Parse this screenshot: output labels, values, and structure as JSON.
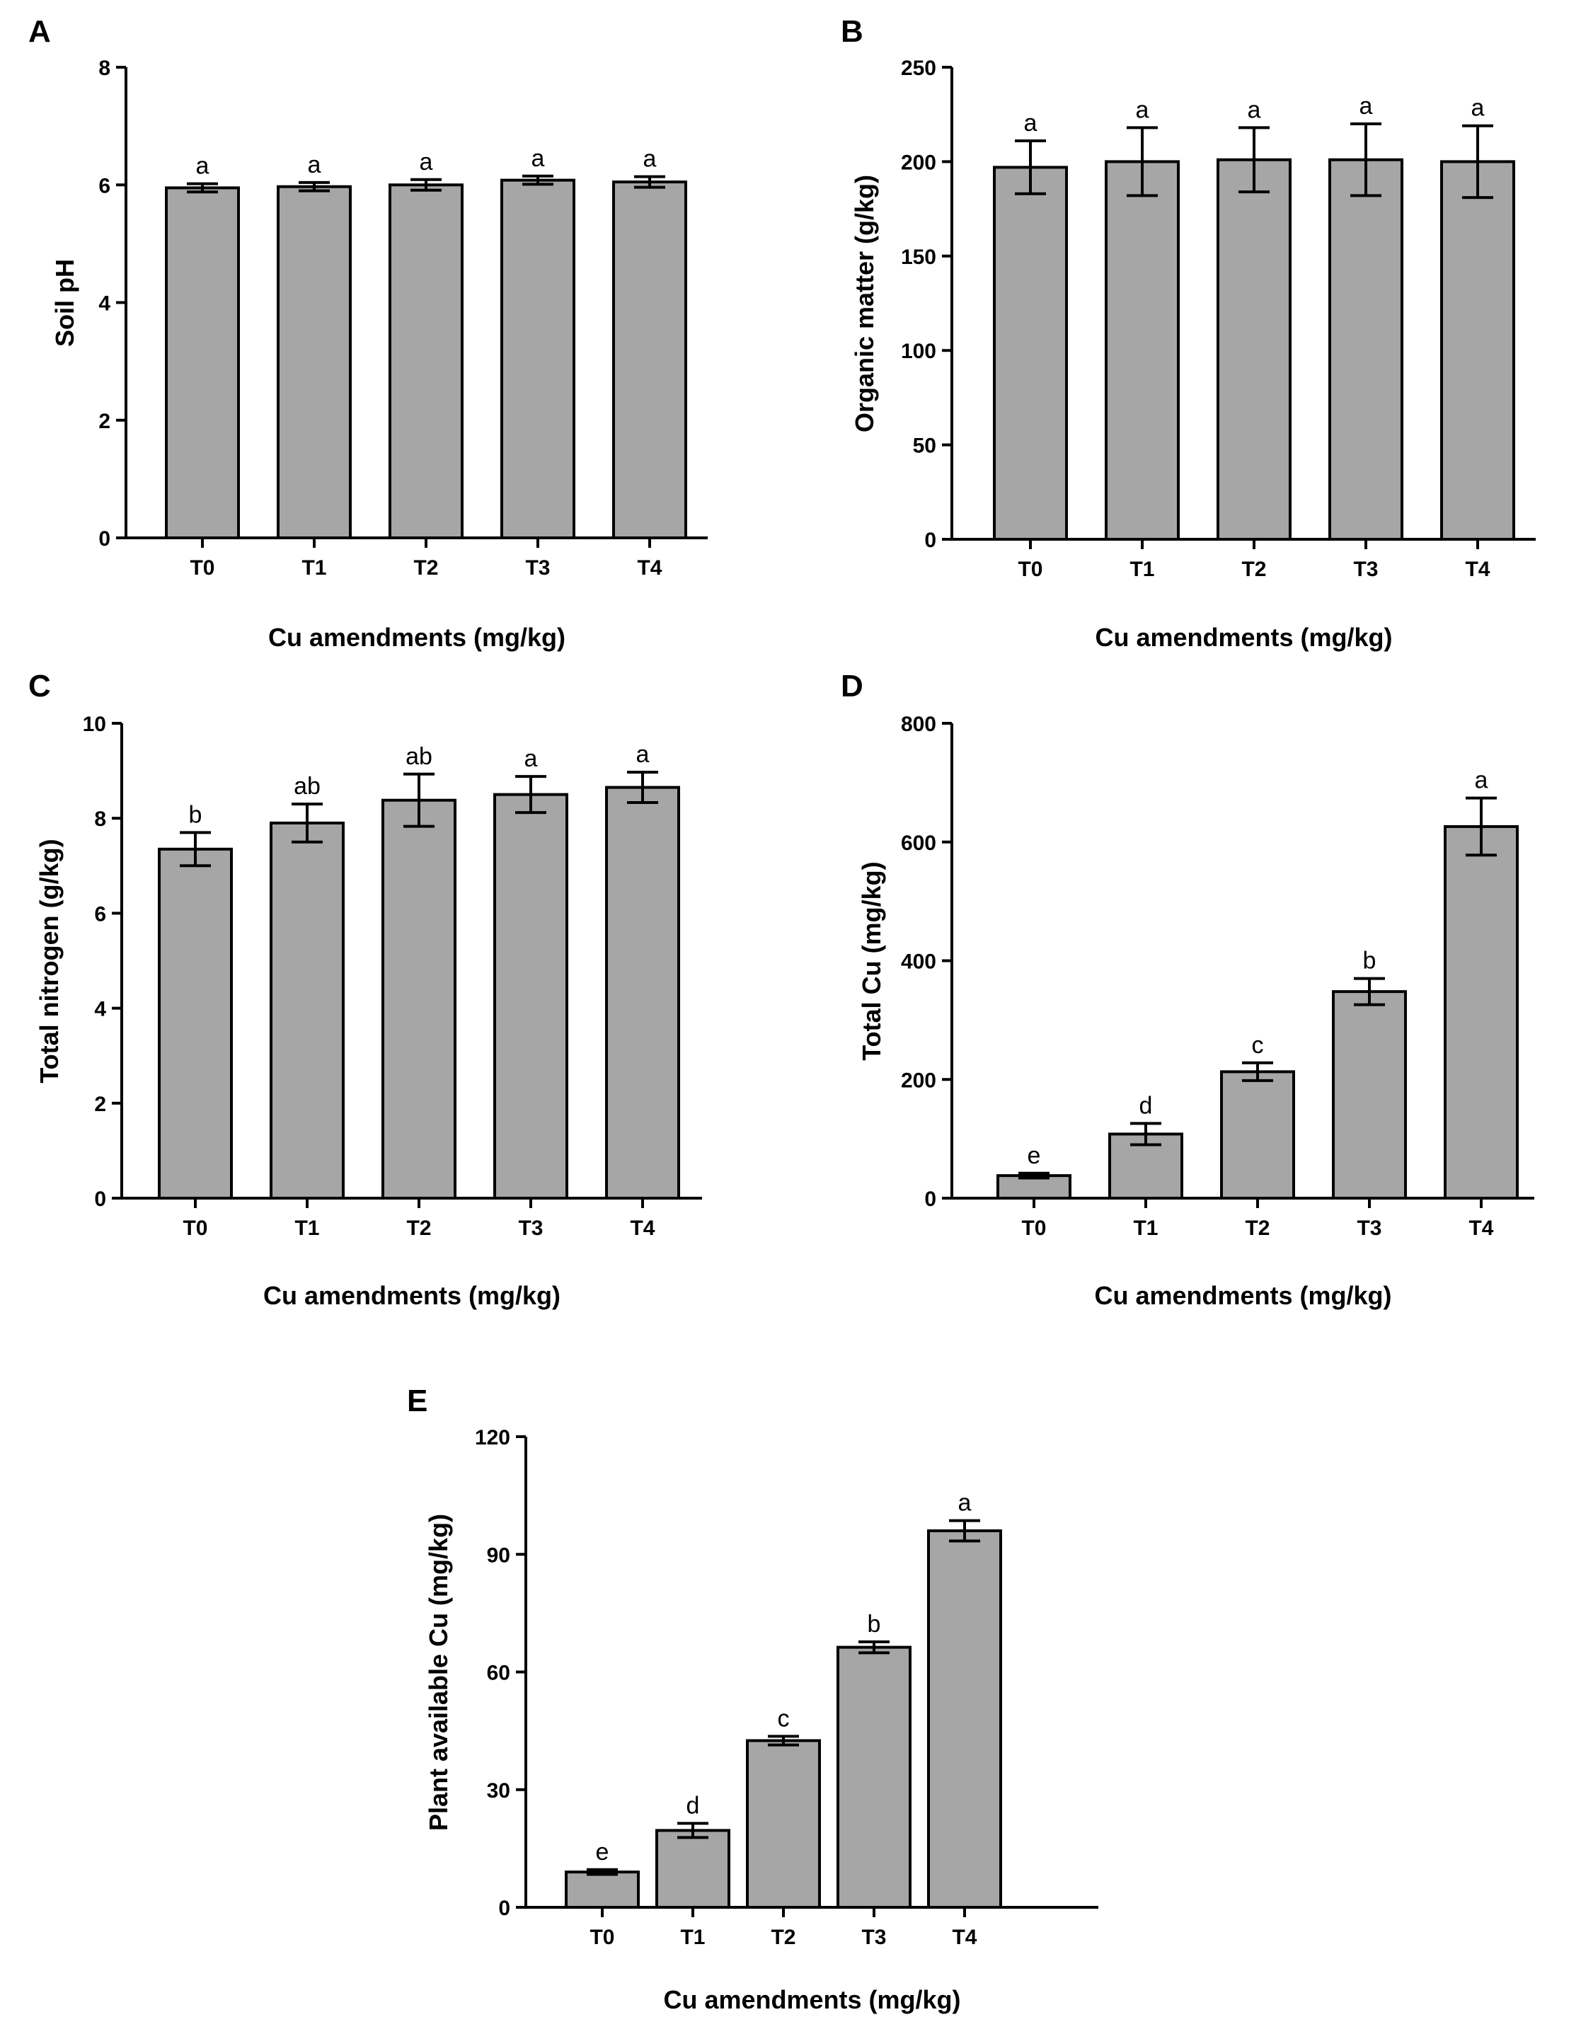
{
  "colors": {
    "bar": "#a6a6a6",
    "stroke": "#000000"
  },
  "chart_data": [
    {
      "type": "bar",
      "panel": "A",
      "categories": [
        "T0",
        "T1",
        "T2",
        "T3",
        "T4"
      ],
      "values": [
        5.95,
        5.97,
        6.0,
        6.08,
        6.05
      ],
      "errors": [
        0.07,
        0.07,
        0.09,
        0.07,
        0.09
      ],
      "significance": [
        "a",
        "a",
        "a",
        "a",
        "a"
      ],
      "ylabel": "Soil pH",
      "xlabel": "Cu amendments (mg/kg)",
      "ylim": [
        0,
        8
      ],
      "yticks": [
        0,
        2,
        4,
        6,
        8
      ],
      "ytick_labels": [
        "0",
        "2",
        "4",
        "6",
        "8"
      ]
    },
    {
      "type": "bar",
      "panel": "B",
      "categories": [
        "T0",
        "T1",
        "T2",
        "T3",
        "T4"
      ],
      "values": [
        197,
        200,
        201,
        201,
        200
      ],
      "errors": [
        14,
        18,
        17,
        19,
        19
      ],
      "significance": [
        "a",
        "a",
        "a",
        "a",
        "a"
      ],
      "ylabel": "Organic matter (g/kg)",
      "xlabel": "Cu amendments (mg/kg)",
      "ylim": [
        0,
        250
      ],
      "yticks": [
        0,
        50,
        100,
        150,
        200,
        250
      ],
      "ytick_labels": [
        "0",
        "50",
        "100",
        "150",
        "200",
        "250"
      ]
    },
    {
      "type": "bar",
      "panel": "C",
      "categories": [
        "T0",
        "T1",
        "T2",
        "T3",
        "T4"
      ],
      "values": [
        7.35,
        7.9,
        8.38,
        8.5,
        8.65
      ],
      "errors": [
        0.35,
        0.4,
        0.55,
        0.38,
        0.32
      ],
      "significance": [
        "b",
        "ab",
        "ab",
        "a",
        "a"
      ],
      "ylabel": "Total nitrogen (g/kg)",
      "xlabel": "Cu amendments (mg/kg)",
      "ylim": [
        0,
        10
      ],
      "yticks": [
        0,
        2,
        4,
        6,
        8,
        10
      ],
      "ytick_labels": [
        "0",
        "2",
        "4",
        "6",
        "8",
        "10"
      ]
    },
    {
      "type": "bar",
      "panel": "D",
      "categories": [
        "T0",
        "T1",
        "T2",
        "T3",
        "T4"
      ],
      "values": [
        38,
        108,
        213,
        348,
        626
      ],
      "errors": [
        4,
        18,
        15,
        22,
        48
      ],
      "significance": [
        "e",
        "d",
        "c",
        "b",
        "a"
      ],
      "ylabel": "Total Cu (mg/kg)",
      "xlabel": "Cu amendments (mg/kg)",
      "ylim": [
        0,
        800
      ],
      "yticks": [
        0,
        200,
        400,
        600,
        800
      ],
      "ytick_labels": [
        "0",
        "200",
        "400",
        "600",
        "800"
      ]
    },
    {
      "type": "bar",
      "panel": "E",
      "categories": [
        "T0",
        "T1",
        "T2",
        "T3",
        "T4"
      ],
      "values": [
        9,
        19.6,
        42.5,
        66.3,
        96
      ],
      "errors": [
        0.6,
        1.8,
        1.1,
        1.4,
        2.6
      ],
      "significance": [
        "e",
        "d",
        "c",
        "b",
        "a"
      ],
      "ylabel": "Plant available Cu (mg/kg)",
      "xlabel": "Cu amendments (mg/kg)",
      "ylim": [
        0,
        120
      ],
      "yticks": [
        0,
        30,
        60,
        90,
        120
      ],
      "ytick_labels": [
        "0",
        "30",
        "60",
        "90",
        "120"
      ]
    }
  ]
}
